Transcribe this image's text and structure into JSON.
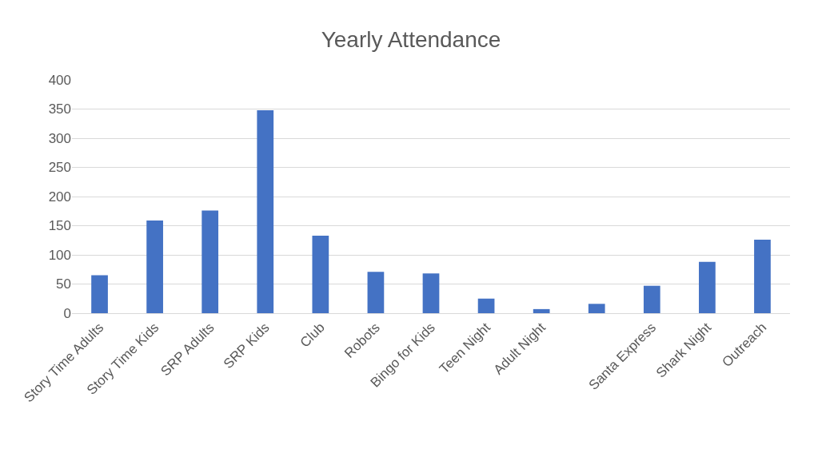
{
  "chart_data": {
    "type": "bar",
    "title": "Yearly Attendance",
    "categories": [
      "Story Time Adults",
      "Story Time Kids",
      "SRP Adults",
      "SRP Kids",
      "Club",
      "Robots",
      "Bingo for Kids",
      "Teen Night",
      "Adult Night",
      null,
      "Santa Express",
      "Shark Night",
      "Outreach"
    ],
    "values": [
      65,
      159,
      176,
      348,
      133,
      71,
      68,
      25,
      7,
      16,
      47,
      88,
      126
    ],
    "color": "#4472c4",
    "ylim": [
      0,
      400
    ],
    "yticks": [
      0,
      50,
      100,
      150,
      200,
      250,
      300,
      350,
      400
    ],
    "grid": "y",
    "legend": false
  }
}
